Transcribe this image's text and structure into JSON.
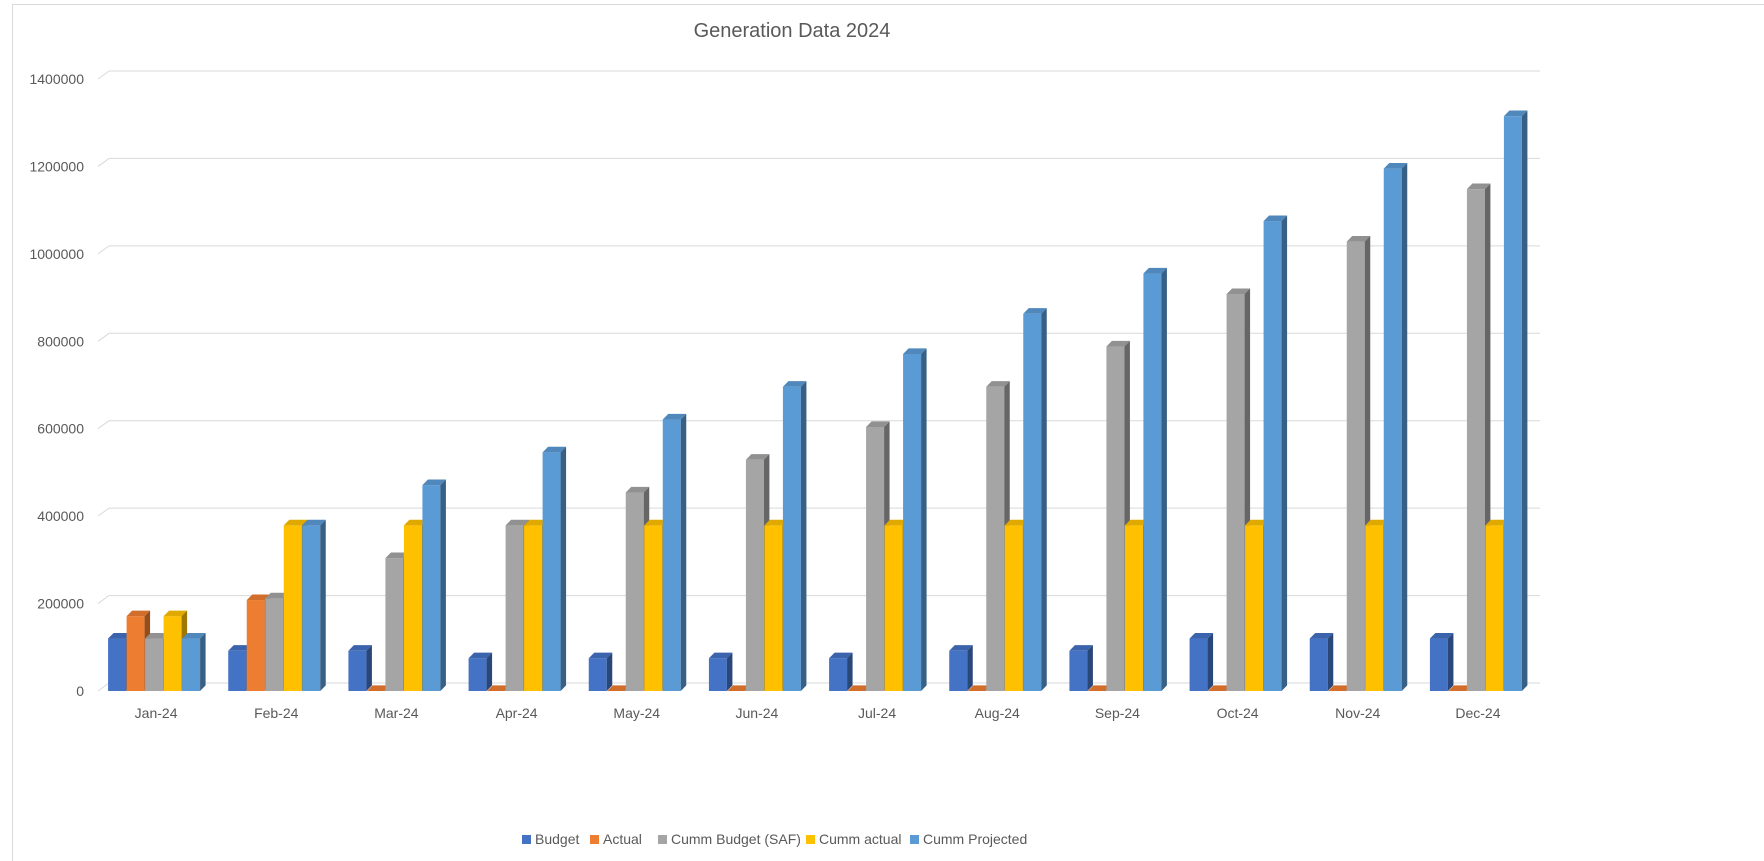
{
  "chart_data": {
    "type": "bar",
    "title": "Generation Data 2024",
    "xlabel": "",
    "ylabel": "",
    "ylim": [
      0,
      1400000
    ],
    "yticks": [
      0,
      200000,
      400000,
      600000,
      800000,
      1000000,
      1200000,
      1400000
    ],
    "ytick_labels": [
      "0",
      "200000",
      "400000",
      "600000",
      "800000",
      "1000000",
      "1200000",
      "1400000"
    ],
    "grid": true,
    "legend_position": "bottom",
    "categories": [
      "Jan-24",
      "Feb-24",
      "Mar-24",
      "Apr-24",
      "May-24",
      "Jun-24",
      "Jul-24",
      "Aug-24",
      "Sep-24",
      "Oct-24",
      "Nov-24",
      "Dec-24"
    ],
    "series": [
      {
        "name": "Budget",
        "color": "#4472c4",
        "values": [
          120000,
          92000,
          92000,
          75000,
          75000,
          75000,
          75000,
          92000,
          92000,
          120000,
          120000,
          120000
        ]
      },
      {
        "name": "Actual",
        "color": "#ed7d31",
        "values": [
          171000,
          208000,
          0,
          0,
          0,
          0,
          0,
          0,
          0,
          0,
          0,
          0
        ]
      },
      {
        "name": "Cumm  Budget (SAF)",
        "color": "#a5a5a5",
        "values": [
          120000,
          212000,
          304000,
          379000,
          454000,
          529000,
          604000,
          696000,
          788000,
          908000,
          1028000,
          1148000
        ]
      },
      {
        "name": "Cumm actual",
        "color": "#ffc000",
        "values": [
          171000,
          379000,
          379000,
          379000,
          379000,
          379000,
          379000,
          379000,
          379000,
          379000,
          379000,
          379000
        ]
      },
      {
        "name": "Cumm Projected",
        "color": "#5b9bd5",
        "values": [
          120000,
          379000,
          471000,
          546000,
          621000,
          696000,
          771000,
          863000,
          955000,
          1075000,
          1195000,
          1315000
        ]
      }
    ]
  }
}
